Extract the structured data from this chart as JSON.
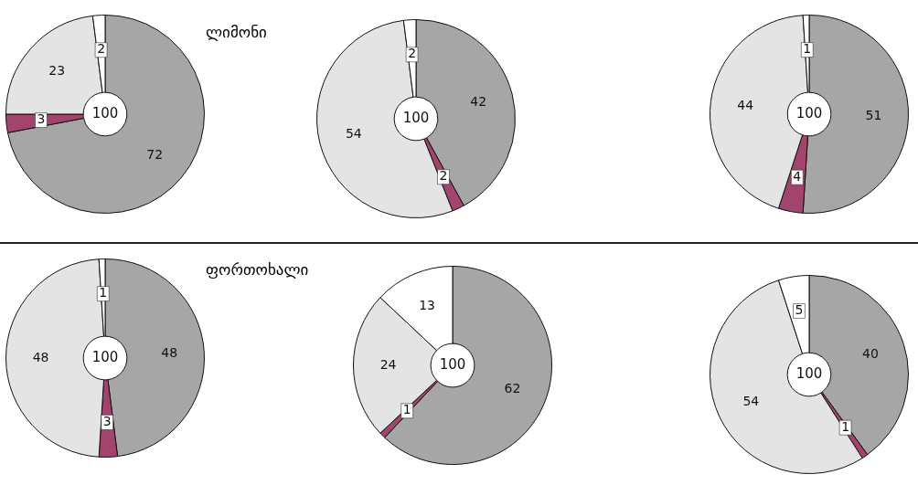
{
  "chart_data": [
    {
      "type": "donut",
      "title": "ლიმონი",
      "categories": [
        null,
        null,
        null,
        null
      ],
      "values": [
        72,
        3,
        23,
        2
      ],
      "colors": [
        "#a6a6a6",
        "#a3446e",
        "#e4e4e4",
        "#ffffff"
      ],
      "data_labels": true,
      "annotations": [
        "100"
      ]
    },
    {
      "type": "donut",
      "categories": [
        null,
        null,
        null,
        null
      ],
      "values": [
        42,
        2,
        54,
        2
      ],
      "colors": [
        "#a6a6a6",
        "#a3446e",
        "#e4e4e4",
        "#ffffff"
      ],
      "data_labels": true,
      "annotations": [
        "100"
      ]
    },
    {
      "type": "donut",
      "categories": [
        null,
        null,
        null,
        null
      ],
      "values": [
        51,
        4,
        44,
        1
      ],
      "colors": [
        "#a6a6a6",
        "#a3446e",
        "#e4e4e4",
        "#ffffff"
      ],
      "data_labels": true,
      "annotations": [
        "100"
      ]
    },
    {
      "type": "donut",
      "title": "ფორთოხალი",
      "categories": [
        null,
        null,
        null,
        null
      ],
      "values": [
        48,
        3,
        48,
        1
      ],
      "colors": [
        "#a6a6a6",
        "#a3446e",
        "#e4e4e4",
        "#ffffff"
      ],
      "data_labels": true,
      "annotations": [
        "100"
      ]
    },
    {
      "type": "donut",
      "categories": [
        null,
        null,
        null,
        null
      ],
      "values": [
        62,
        1,
        24,
        13
      ],
      "colors": [
        "#a6a6a6",
        "#a3446e",
        "#e4e4e4",
        "#ffffff"
      ],
      "data_labels": true,
      "annotations": [
        "100"
      ]
    },
    {
      "type": "donut",
      "categories": [
        null,
        null,
        null,
        null
      ],
      "values": [
        40,
        1,
        54,
        5
      ],
      "colors": [
        "#a6a6a6",
        "#a3446e",
        "#e4e4e4",
        "#ffffff"
      ],
      "data_labels": true,
      "annotations": [
        "100"
      ]
    }
  ]
}
